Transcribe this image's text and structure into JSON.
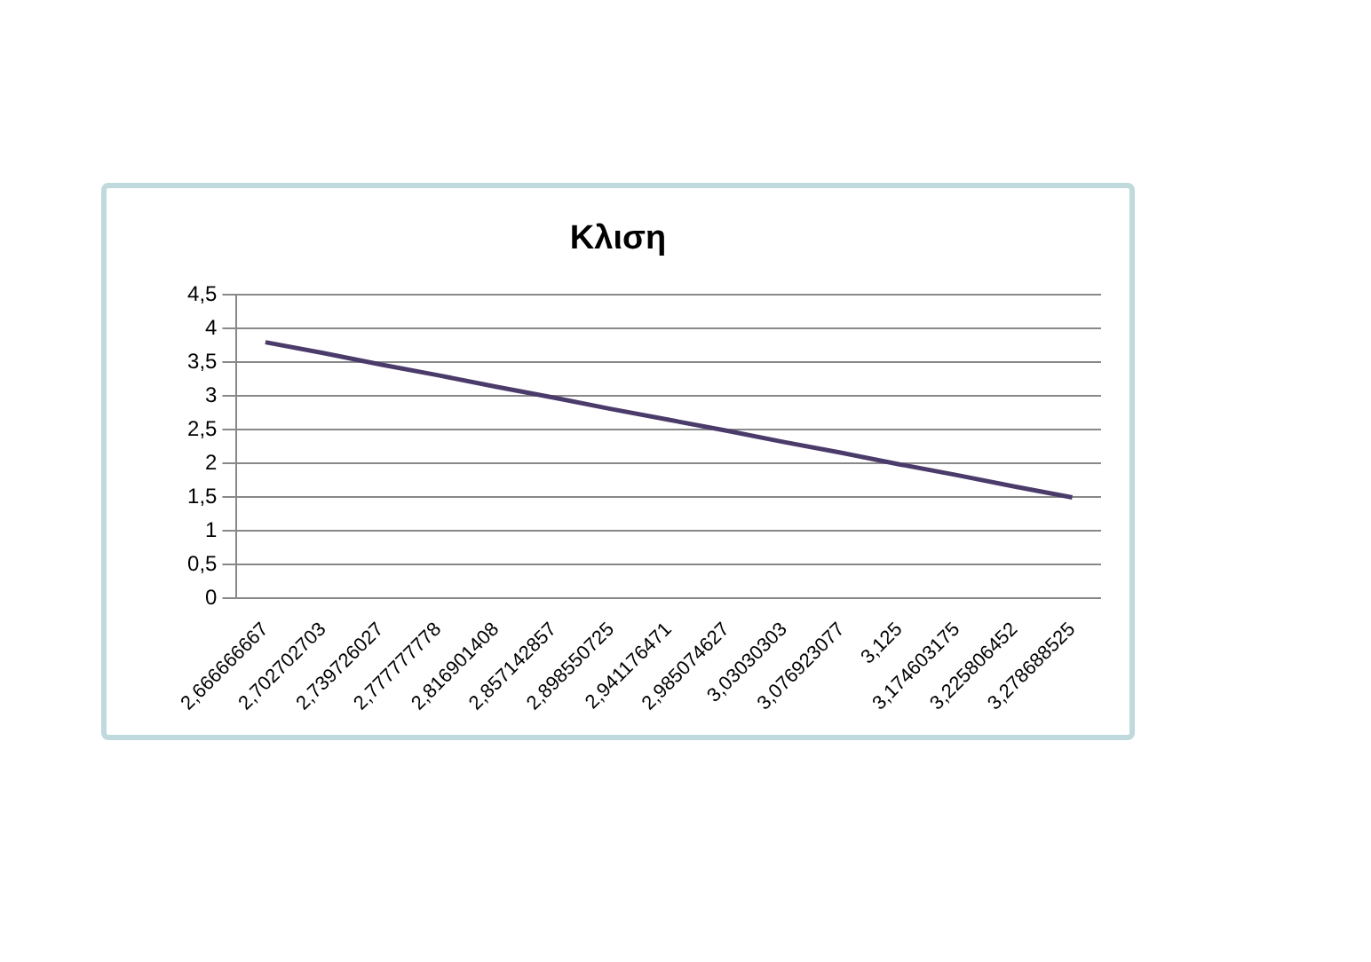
{
  "chart_data": {
    "type": "line",
    "title": "Κλιση",
    "categories": [
      "2,666666667",
      "2,702702703",
      "2,739726027",
      "2,777777778",
      "2,816901408",
      "2,857142857",
      "2,898550725",
      "2,941176471",
      "2,985074627",
      "3,03030303",
      "3,076923077",
      "3,125",
      "3,174603175",
      "3,225806452",
      "3,278688525"
    ],
    "series": [
      {
        "color": "#4b3b6b",
        "values": [
          3.8,
          3.64,
          3.47,
          3.31,
          3.14,
          2.98,
          2.81,
          2.65,
          2.49,
          2.32,
          2.16,
          1.99,
          1.83,
          1.66,
          1.5
        ]
      }
    ],
    "ylim": [
      0,
      4.5
    ],
    "yticks": [
      0,
      {
        "value": 0.5,
        "label": "0,5"
      },
      1,
      {
        "value": 1.5,
        "label": "1,5"
      },
      2,
      {
        "value": 2.5,
        "label": "2,5"
      },
      3,
      {
        "value": 3.5,
        "label": "3,5"
      },
      4,
      {
        "value": 4.5,
        "label": "4,5"
      }
    ],
    "grid": "y",
    "legend": false,
    "marker": "none",
    "line_style": "solid"
  }
}
